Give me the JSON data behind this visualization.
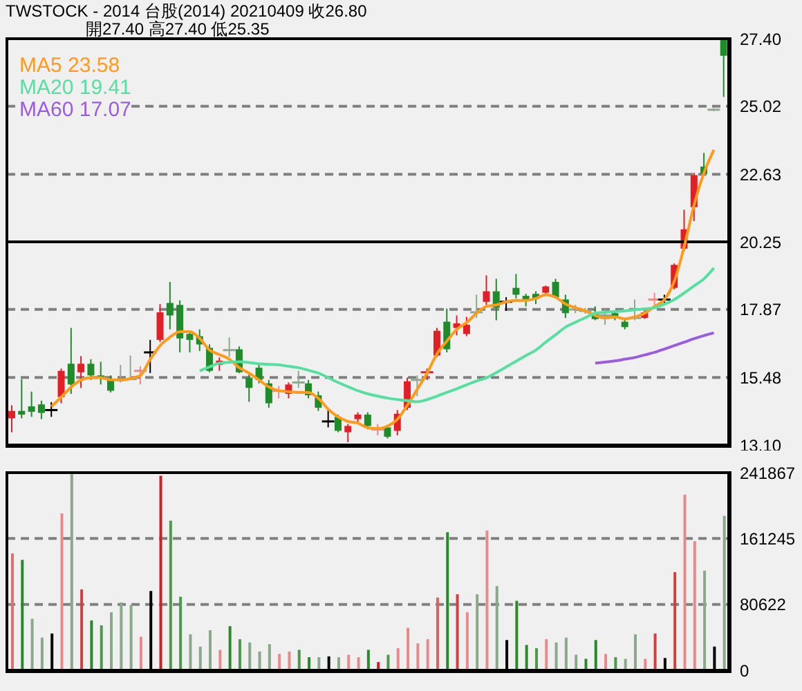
{
  "chart_data": [
    {
      "type": "candlestick",
      "title": "TWSTOCK - 2014 台股(2014) 20210409 收26.80",
      "subtitle": "開27.40 高27.40 低25.35",
      "categories": [
        null,
        null,
        null,
        null,
        null,
        null,
        null,
        null,
        null,
        null,
        null,
        null,
        null,
        null,
        null,
        null,
        null,
        null,
        null,
        null,
        null,
        null,
        null,
        null,
        null,
        null,
        null,
        null,
        null,
        null,
        null,
        null,
        null,
        null,
        null,
        null,
        null,
        null,
        null,
        null,
        null,
        null,
        null,
        null,
        null,
        null,
        null,
        null,
        null,
        null,
        null,
        null,
        null,
        null,
        null,
        null,
        null,
        null,
        null,
        null,
        null,
        null,
        null,
        null,
        null,
        null,
        null,
        null,
        null,
        null,
        null,
        null,
        null
      ],
      "ohlc": [
        [
          14.04,
          14.5,
          13.55,
          14.3
        ],
        [
          14.3,
          15.42,
          14.04,
          14.17
        ],
        [
          14.46,
          14.98,
          14.09,
          14.27
        ],
        [
          14.53,
          14.66,
          14.01,
          14.23
        ],
        [
          14.33,
          14.61,
          14.09,
          14.33
        ],
        [
          14.79,
          15.79,
          14.57,
          15.71
        ],
        [
          15.96,
          17.22,
          14.9,
          15.23
        ],
        [
          15.66,
          16.23,
          15.11,
          15.96
        ],
        [
          15.96,
          16.12,
          15.39,
          15.55
        ],
        [
          15.55,
          16.03,
          15.23,
          15.47
        ],
        [
          15.42,
          15.55,
          14.95,
          15.01
        ],
        [
          15.42,
          15.92,
          15.3,
          15.34
        ],
        [
          15.42,
          16.25,
          15.39,
          15.39
        ],
        [
          15.68,
          15.87,
          15.23,
          15.71
        ],
        [
          16.36,
          16.8,
          15.63,
          16.36
        ],
        [
          16.8,
          18.06,
          16.73,
          17.77
        ],
        [
          18.1,
          18.84,
          17.17,
          17.66
        ],
        [
          18.03,
          18.19,
          16.36,
          16.85
        ],
        [
          17.01,
          17.12,
          16.36,
          16.8
        ],
        [
          16.93,
          17.17,
          16.41,
          16.64
        ],
        [
          16.52,
          16.64,
          15.66,
          15.71
        ],
        [
          15.92,
          16.18,
          15.71,
          16.07
        ],
        [
          16.44,
          16.89,
          16.2,
          16.44
        ],
        [
          16.47,
          16.57,
          15.63,
          15.66
        ],
        [
          15.47,
          15.58,
          14.62,
          15.11
        ],
        [
          15.82,
          15.92,
          15.27,
          15.39
        ],
        [
          15.27,
          15.39,
          14.41,
          14.57
        ],
        [
          14.98,
          15.18,
          14.74,
          15.01
        ],
        [
          14.9,
          15.3,
          14.74,
          15.23
        ],
        [
          15.3,
          15.71,
          15.11,
          15.3
        ],
        [
          15.27,
          15.39,
          14.74,
          14.85
        ],
        [
          14.85,
          14.98,
          14.3,
          14.41
        ],
        [
          13.93,
          14.33,
          13.72,
          13.93
        ],
        [
          14.09,
          14.17,
          13.55,
          13.6
        ],
        [
          13.55,
          13.84,
          13.2,
          13.77
        ],
        [
          14.01,
          14.25,
          13.84,
          14.17
        ],
        [
          14.17,
          14.25,
          13.65,
          13.77
        ],
        [
          13.62,
          13.84,
          13.44,
          13.65
        ],
        [
          13.72,
          13.77,
          13.33,
          13.39
        ],
        [
          13.6,
          14.33,
          13.44,
          14.2
        ],
        [
          14.41,
          15.47,
          14.33,
          15.34
        ],
        [
          15.39,
          15.55,
          14.82,
          15.39
        ],
        [
          15.63,
          15.79,
          15.39,
          15.66
        ],
        [
          16.25,
          17.22,
          16.2,
          17.12
        ],
        [
          17.44,
          17.9,
          16.36,
          16.47
        ],
        [
          17.22,
          17.66,
          16.96,
          17.38
        ],
        [
          17.01,
          17.61,
          16.93,
          17.33
        ],
        [
          17.77,
          18.39,
          17.57,
          17.77
        ],
        [
          18.14,
          19.07,
          18.03,
          18.51
        ],
        [
          18.51,
          18.95,
          17.49,
          17.93
        ],
        [
          18.14,
          18.3,
          17.82,
          18.14
        ],
        [
          18.63,
          19.12,
          18.26,
          18.39
        ],
        [
          18.35,
          18.42,
          17.98,
          18.19
        ],
        [
          18.42,
          18.51,
          18.06,
          18.26
        ],
        [
          18.46,
          18.71,
          18.42,
          18.68
        ],
        [
          18.84,
          18.95,
          18.26,
          18.3
        ],
        [
          18.22,
          18.39,
          17.57,
          17.74
        ],
        [
          17.87,
          18.03,
          17.74,
          17.87
        ],
        [
          17.82,
          17.93,
          17.72,
          17.82
        ],
        [
          17.71,
          17.98,
          17.49,
          17.53
        ],
        [
          17.66,
          17.9,
          17.33,
          17.66
        ],
        [
          17.74,
          17.82,
          17.49,
          17.57
        ],
        [
          17.44,
          17.54,
          17.17,
          17.25
        ],
        [
          17.57,
          18.22,
          17.49,
          17.57
        ],
        [
          17.57,
          17.82,
          17.54,
          17.77
        ],
        [
          18.19,
          18.46,
          18.03,
          18.22
        ],
        [
          18.22,
          18.39,
          18.06,
          18.22
        ],
        [
          18.63,
          19.49,
          18.58,
          19.44
        ],
        [
          20.01,
          21.38,
          19.92,
          20.69
        ],
        [
          21.47,
          22.68,
          20.98,
          22.6
        ],
        [
          22.9,
          23.38,
          22.63,
          22.65
        ],
        [
          24.9,
          24.95,
          24.85,
          24.9
        ],
        [
          27.4,
          27.4,
          25.35,
          26.8
        ]
      ],
      "colors": [
        "#e01f26",
        "#1e8c28",
        "#1e8c28",
        "#1e8c28",
        "#000000",
        "#e01f26",
        "#1e8c28",
        "#e01f26",
        "#1e8c28",
        "#1e8c28",
        "#1e8c28",
        "#8fa88f",
        "#8fa88f",
        "#e88a8a",
        "#000000",
        "#e01f26",
        "#1e8c28",
        "#1e8c28",
        "#1e8c28",
        "#1e8c28",
        "#1e8c28",
        "#e01f26",
        "#8fa88f",
        "#1e8c28",
        "#1e8c28",
        "#1e8c28",
        "#1e8c28",
        "#e88a8a",
        "#e01f26",
        "#8fa88f",
        "#1e8c28",
        "#1e8c28",
        "#000000",
        "#1e8c28",
        "#e01f26",
        "#e01f26",
        "#1e8c28",
        "#e88a8a",
        "#1e8c28",
        "#e01f26",
        "#e01f26",
        "#8fa88f",
        "#e01f26",
        "#e01f26",
        "#1e8c28",
        "#e01f26",
        "#e01f26",
        "#8fa88f",
        "#e01f26",
        "#1e8c28",
        "#000000",
        "#1e8c28",
        "#1e8c28",
        "#1e8c28",
        "#e01f26",
        "#1e8c28",
        "#1e8c28",
        "#8fa88f",
        "#8fa88f",
        "#1e8c28",
        "#8fa88f",
        "#1e8c28",
        "#1e8c28",
        "#8fa88f",
        "#e01f26",
        "#e88a8a",
        "#000000",
        "#e01f26",
        "#e01f26",
        "#e01f26",
        "#1e8c28",
        "#8fa88f",
        "#1e8c28"
      ],
      "series": [
        {
          "type": "line",
          "name": "MA5 23.58",
          "color": "#ff9a1a",
          "values": [
            null,
            null,
            null,
            null,
            14.45,
            14.79,
            15.14,
            15.39,
            15.47,
            15.47,
            15.39,
            15.39,
            15.44,
            15.55,
            16.12,
            16.6,
            16.9,
            17.09,
            17.09,
            16.85,
            16.44,
            16.28,
            16.12,
            15.82,
            15.63,
            15.39,
            15.14,
            15.01,
            14.98,
            14.95,
            14.95,
            14.74,
            14.36,
            14.09,
            13.93,
            13.87,
            13.71,
            13.68,
            13.77,
            14.01,
            14.5,
            15.06,
            15.63,
            16.31,
            16.76,
            17.17,
            17.41,
            17.74,
            17.98,
            18.03,
            18.14,
            18.19,
            18.19,
            18.26,
            18.39,
            18.3,
            18.06,
            17.93,
            17.82,
            17.66,
            17.57,
            17.61,
            17.54,
            17.61,
            17.74,
            17.98,
            18.22,
            18.87,
            20.09,
            21.55,
            22.68,
            23.49,
            null
          ]
        },
        {
          "type": "line",
          "name": "MA20 19.41",
          "color": "#55e0a0",
          "values": [
            null,
            null,
            null,
            null,
            null,
            null,
            null,
            null,
            null,
            null,
            null,
            null,
            null,
            null,
            null,
            null,
            null,
            null,
            null,
            15.71,
            15.85,
            15.98,
            16.01,
            16.03,
            16.0,
            15.96,
            15.94,
            15.92,
            15.87,
            15.82,
            15.73,
            15.63,
            15.47,
            15.3,
            15.15,
            15.01,
            14.9,
            14.82,
            14.75,
            14.7,
            14.66,
            14.62,
            14.7,
            14.82,
            14.95,
            15.08,
            15.22,
            15.35,
            15.47,
            15.65,
            15.85,
            16.05,
            16.25,
            16.44,
            16.72,
            16.98,
            17.25,
            17.42,
            17.58,
            17.74,
            17.77,
            17.8,
            17.82,
            17.86,
            17.89,
            17.93,
            18.06,
            18.22,
            18.45,
            18.7,
            18.95,
            19.33,
            null
          ]
        },
        {
          "type": "line",
          "name": "MA60 17.07",
          "color": "#9a5ce0",
          "values": [
            null,
            null,
            null,
            null,
            null,
            null,
            null,
            null,
            null,
            null,
            null,
            null,
            null,
            null,
            null,
            null,
            null,
            null,
            null,
            null,
            null,
            null,
            null,
            null,
            null,
            null,
            null,
            null,
            null,
            null,
            null,
            null,
            null,
            null,
            null,
            null,
            null,
            null,
            null,
            null,
            null,
            null,
            null,
            null,
            null,
            null,
            null,
            null,
            null,
            null,
            null,
            null,
            null,
            null,
            null,
            null,
            null,
            null,
            null,
            15.98,
            16.02,
            16.06,
            16.12,
            16.18,
            16.27,
            16.36,
            16.48,
            16.6,
            16.72,
            16.84,
            16.95,
            17.05,
            null
          ]
        }
      ],
      "ylim": [
        13.1,
        27.4
      ],
      "yticks": [
        {
          "value": 13.1,
          "label": "13.10"
        },
        15.48,
        17.87,
        20.25,
        22.63,
        25.02,
        {
          "value": 27.4,
          "label": "27.40"
        }
      ],
      "ref_lines": [
        {
          "axis": "y",
          "value": 20.25,
          "color": "#000000",
          "line_style": "solid"
        }
      ],
      "grid": "y",
      "legend": "top left",
      "tick_labels": "y"
    },
    {
      "type": "bar",
      "categories": [
        null,
        null,
        null,
        null,
        null,
        null,
        null,
        null,
        null,
        null,
        null,
        null,
        null,
        null,
        null,
        null,
        null,
        null,
        null,
        null,
        null,
        null,
        null,
        null,
        null,
        null,
        null,
        null,
        null,
        null,
        null,
        null,
        null,
        null,
        null,
        null,
        null,
        null,
        null,
        null,
        null,
        null,
        null,
        null,
        null,
        null,
        null,
        null,
        null,
        null,
        null,
        null,
        null,
        null,
        null,
        null,
        null,
        null,
        null,
        null,
        null,
        null,
        null,
        null,
        null,
        null,
        null,
        null,
        null,
        null,
        null,
        null,
        null
      ],
      "values": [
        143000,
        135000,
        63000,
        40000,
        45000,
        192000,
        240000,
        99000,
        61000,
        55000,
        71000,
        83000,
        80000,
        41000,
        97000,
        238000,
        183000,
        90000,
        44000,
        29000,
        49000,
        25000,
        54000,
        38000,
        34000,
        23000,
        32000,
        20000,
        23000,
        25000,
        16000,
        16000,
        17000,
        16000,
        19000,
        16000,
        25000,
        10000,
        19000,
        27000,
        52000,
        33000,
        38000,
        89000,
        169000,
        93000,
        71000,
        93000,
        171000,
        103000,
        37000,
        85000,
        31000,
        27000,
        38000,
        34000,
        40000,
        19000,
        14000,
        37000,
        20000,
        16000,
        14000,
        44000,
        14000,
        45000,
        15000,
        120000,
        215000,
        158000,
        122000,
        29000,
        189000
      ],
      "colors": [
        "#e07070",
        "#2a8a2a",
        "#8aa88a",
        "#8aa88a",
        "#000000",
        "#e88a8a",
        "#8aa88a",
        "#d04040",
        "#2a8a2a",
        "#4a9a4a",
        "#8aa88a",
        "#8aa88a",
        "#8aa88a",
        "#e88a8a",
        "#000000",
        "#d02020",
        "#4a9a4a",
        "#4a9a4a",
        "#8aa88a",
        "#8aa88a",
        "#8aa88a",
        "#e88a8a",
        "#2a8a2a",
        "#4a9a4a",
        "#8aa88a",
        "#8aa88a",
        "#8aa88a",
        "#e88a8a",
        "#e88a8a",
        "#4a9a4a",
        "#2a8a2a",
        "#8aa88a",
        "#000000",
        "#8aa88a",
        "#e88a8a",
        "#e88a8a",
        "#2a8a2a",
        "#d02020",
        "#4a9a4a",
        "#e88a8a",
        "#e88a8a",
        "#e88a8a",
        "#e88a8a",
        "#e06060",
        "#2a8a2a",
        "#d04040",
        "#e88a8a",
        "#8aa88a",
        "#e88a8a",
        "#8aa88a",
        "#000000",
        "#2a8a2a",
        "#2a8a2a",
        "#4a9a4a",
        "#e88a8a",
        "#8aa88a",
        "#8aa88a",
        "#8aa88a",
        "#2a8a2a",
        "#2a8a2a",
        "#e88a8a",
        "#4a9a4a",
        "#8aa88a",
        "#8aa88a",
        "#e88a8a",
        "#d04040",
        "#000000",
        "#d04040",
        "#e88a8a",
        "#e88a8a",
        "#8aa88a",
        "#000000",
        "#8aa88a"
      ],
      "ylim": [
        0,
        241867
      ],
      "yticks": [
        0,
        80622,
        161245,
        241867
      ],
      "grid": "y",
      "tick_labels": "y"
    }
  ]
}
